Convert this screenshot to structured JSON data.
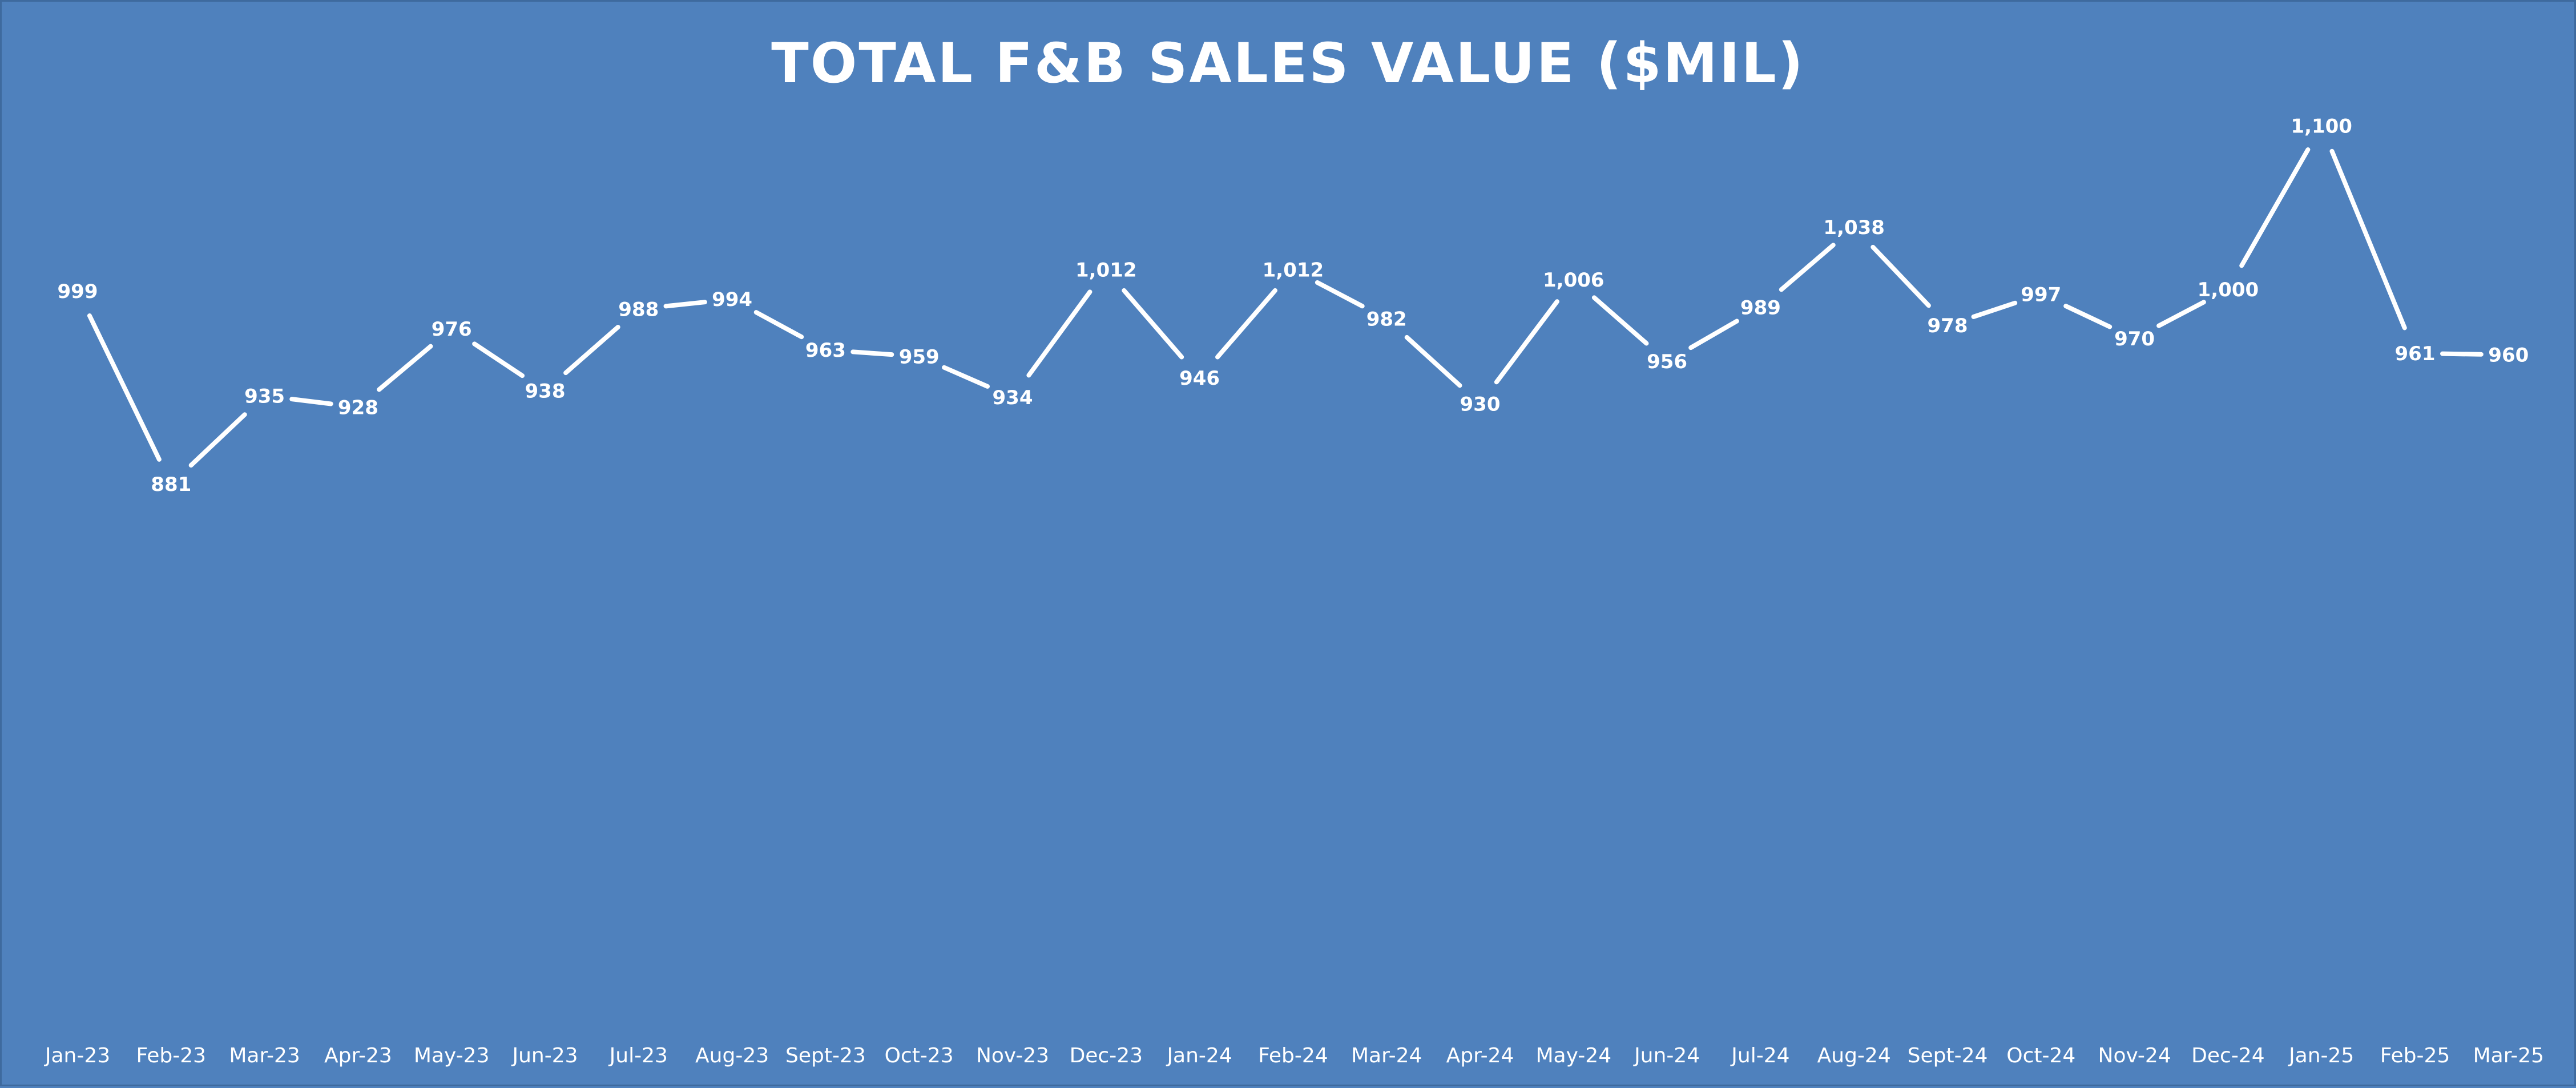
{
  "chart_data": {
    "type": "line",
    "title": "TOTAL F&B SALES VALUE ($MIL)",
    "xlabel": "",
    "ylabel": "",
    "categories": [
      "Jan-23",
      "Feb-23",
      "Mar-23",
      "Apr-23",
      "May-23",
      "Jun-23",
      "Jul-23",
      "Aug-23",
      "Sept-23",
      "Oct-23",
      "Nov-23",
      "Dec-23",
      "Jan-24",
      "Feb-24",
      "Mar-24",
      "Apr-24",
      "May-24",
      "Jun-24",
      "Jul-24",
      "Aug-24",
      "Sept-24",
      "Oct-24",
      "Nov-24",
      "Dec-24",
      "Jan-25",
      "Feb-25",
      "Mar-25"
    ],
    "series": [
      {
        "values": [
          999,
          881,
          935,
          928,
          976,
          938,
          988,
          994,
          963,
          959,
          934,
          1012,
          946,
          1012,
          982,
          930,
          1006,
          956,
          989,
          1038,
          978,
          997,
          970,
          1000,
          1100,
          961,
          960
        ],
        "labels": [
          "999",
          "881",
          "935",
          "928",
          "976",
          "938",
          "988",
          "994",
          "963",
          "959",
          "934",
          "1,012",
          "946",
          "1,012",
          "982",
          "930",
          "1,006",
          "956",
          "989",
          "1,038",
          "978",
          "997",
          "970",
          "1,000",
          "1,100",
          "961",
          "960"
        ]
      }
    ],
    "ylim": [
      0,
      1400
    ],
    "grid": false,
    "legend": "none",
    "drop_lines": true,
    "colors": {
      "background": "#4f81bd",
      "border": "#3e6a9e",
      "line": "#ffffff",
      "text": "#ffffff"
    }
  }
}
